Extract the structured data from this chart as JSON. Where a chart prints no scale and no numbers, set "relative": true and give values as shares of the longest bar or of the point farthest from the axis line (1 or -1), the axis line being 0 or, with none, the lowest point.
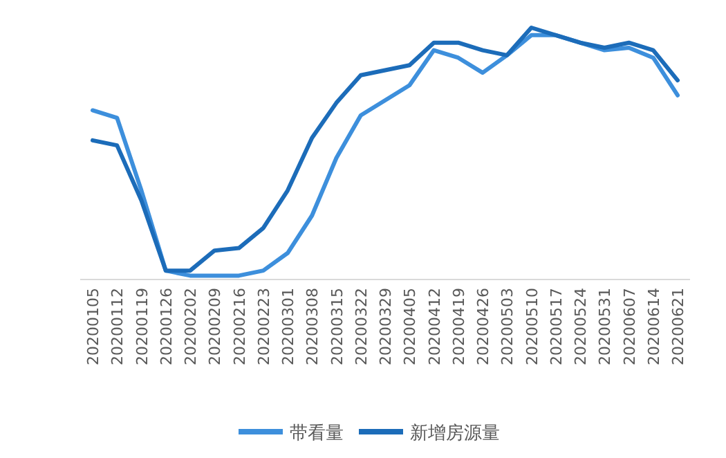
{
  "chart_data": {
    "type": "line",
    "relative": true,
    "legend": "bottom",
    "categories": [
      "20200105",
      "20200112",
      "20200119",
      "20200126",
      "20200202",
      "20200209",
      "20200216",
      "20200223",
      "20200301",
      "20200308",
      "20200315",
      "20200322",
      "20200329",
      "20200405",
      "20200412",
      "20200419",
      "20200426",
      "20200503",
      "20200510",
      "20200517",
      "20200524",
      "20200531",
      "20200607",
      "20200614",
      "20200621"
    ],
    "series": [
      {
        "name": "带看量",
        "color": "#3d8fdc",
        "values": [
          0.67,
          0.64,
          0.35,
          0.03,
          0.01,
          0.01,
          0.01,
          0.03,
          0.1,
          0.25,
          0.48,
          0.65,
          0.71,
          0.77,
          0.91,
          0.88,
          0.82,
          0.89,
          0.97,
          0.97,
          0.94,
          0.91,
          0.92,
          0.88,
          0.73
        ]
      },
      {
        "name": "新增房源量",
        "color": "#1c6cb9",
        "values": [
          0.55,
          0.53,
          0.31,
          0.03,
          0.03,
          0.11,
          0.12,
          0.2,
          0.35,
          0.56,
          0.7,
          0.81,
          0.83,
          0.85,
          0.94,
          0.94,
          0.91,
          0.89,
          1,
          0.97,
          0.94,
          0.92,
          0.94,
          0.91,
          0.79
        ]
      }
    ]
  }
}
